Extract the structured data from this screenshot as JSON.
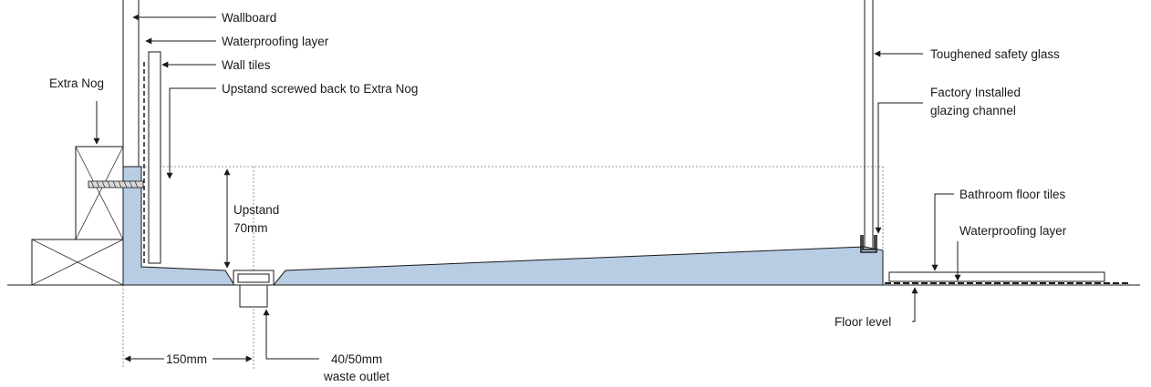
{
  "labels": {
    "wallboard": "Wallboard",
    "waterproofing_wall": "Waterproofing layer",
    "wall_tiles": "Wall tiles",
    "upstand_screwed": "Upstand screwed back to Extra Nog",
    "extra_nog": "Extra Nog",
    "upstand": "Upstand",
    "upstand_height": "70mm",
    "toughened_glass": "Toughened safety glass",
    "glazing_channel_line1": "Factory Installed",
    "glazing_channel_line2": "glazing channel",
    "bathroom_floor_tiles": "Bathroom floor tiles",
    "waterproofing_floor": "Waterproofing layer",
    "floor_level": "Floor level",
    "dim_150": "150mm",
    "waste_line1": "40/50mm",
    "waste_line2": "waste outlet"
  },
  "colors": {
    "tray_fill": "#b8cce4",
    "line": "#1a1a1a"
  }
}
